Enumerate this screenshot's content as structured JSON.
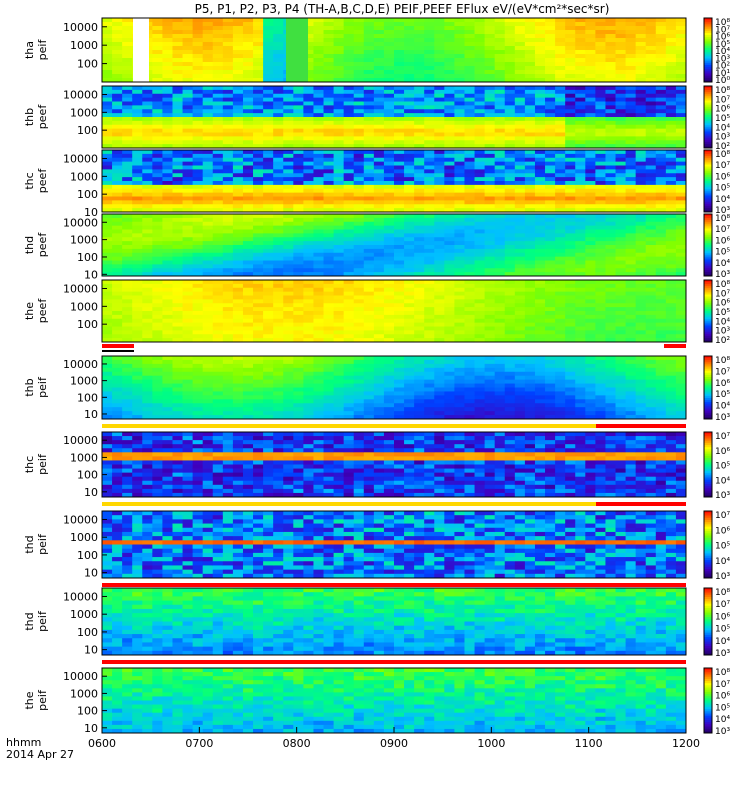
{
  "chart_data": {
    "type": "heatmap",
    "title": "P5, P1, P2, P3, P4 (TH-A,B,C,D,E) PEIF,PEEF EFlux eV/(eV*cm²*sec*sr)",
    "x_axis": {
      "label_line1": "hhmm",
      "label_line2": "2014 Apr 27",
      "ticks": [
        "0600",
        "0700",
        "0800",
        "0900",
        "1000",
        "1100",
        "1200"
      ],
      "range": [
        "0600",
        "1200"
      ]
    },
    "panels": [
      {
        "id": "tha-peif",
        "sat": "tha",
        "prod": "peif",
        "yticks": [
          "10000",
          "1000",
          "100"
        ],
        "ylim": [
          10,
          30000
        ],
        "cbticks": [
          "10⁸",
          "10⁷",
          "10⁶",
          "10⁵",
          "10⁴",
          "10³",
          "10²",
          "10¹",
          "10⁰"
        ],
        "description_hint": "ion spectrogram, mostly orange/yellow, data gap near 0620, green column near 0750"
      },
      {
        "id": "thb-peef",
        "sat": "thb",
        "prod": "peef",
        "yticks": [
          "10000",
          "1000",
          "100"
        ],
        "ylim": [
          10,
          30000
        ],
        "cbticks": [
          "10⁸",
          "10⁷",
          "10⁶",
          "10⁵",
          "10⁴",
          "10³",
          "10²"
        ]
      },
      {
        "id": "thc-peef",
        "sat": "thc",
        "prod": "peef",
        "yticks": [
          "10000",
          "1000",
          "100",
          "10"
        ],
        "ylim": [
          10,
          30000
        ],
        "cbticks": [
          "10⁸",
          "10⁷",
          "10⁶",
          "10⁵",
          "10⁴",
          "10³"
        ]
      },
      {
        "id": "thd-peef",
        "sat": "thd",
        "prod": "peef",
        "yticks": [
          "10000",
          "1000",
          "100",
          "10"
        ],
        "ylim": [
          8,
          30000
        ],
        "cbticks": [
          "10⁸",
          "10⁷",
          "10⁶",
          "10⁵",
          "10⁴",
          "10³"
        ]
      },
      {
        "id": "the-peef",
        "sat": "the",
        "prod": "peef",
        "yticks": [
          "10000",
          "1000",
          "100"
        ],
        "ylim": [
          10,
          30000
        ],
        "cbticks": [
          "10⁸",
          "10⁷",
          "10⁶",
          "10⁵",
          "10⁴",
          "10³",
          "10²"
        ]
      },
      {
        "id": "thb-peif",
        "sat": "thb",
        "prod": "peif",
        "yticks": [
          "10000",
          "1000",
          "100",
          "10"
        ],
        "ylim": [
          5,
          30000
        ],
        "cbticks": [
          "10⁸",
          "10⁷",
          "10⁶",
          "10⁵",
          "10⁴",
          "10³"
        ]
      },
      {
        "id": "thc-peif",
        "sat": "thc",
        "prod": "peif",
        "yticks": [
          "10000",
          "1000",
          "100",
          "10"
        ],
        "ylim": [
          5,
          30000
        ],
        "cbticks": [
          "10⁷",
          "10⁶",
          "10⁵",
          "10⁴",
          "10³"
        ]
      },
      {
        "id": "thd-peif",
        "sat": "thd",
        "prod": "peif",
        "yticks": [
          "10000",
          "1000",
          "100",
          "10"
        ],
        "ylim": [
          5,
          30000
        ],
        "cbticks": [
          "10⁷",
          "10⁶",
          "10⁵",
          "10⁴",
          "10³"
        ]
      },
      {
        "id": "thd-peif-2",
        "sat": "thd",
        "prod": "peif",
        "yticks": [
          "10000",
          "1000",
          "100",
          "10"
        ],
        "ylim": [
          5,
          30000
        ],
        "cbticks": [
          "10⁸",
          "10⁷",
          "10⁶",
          "10⁵",
          "10⁴",
          "10³"
        ]
      },
      {
        "id": "the-peif",
        "sat": "the",
        "prod": "peif",
        "yticks": [
          "10000",
          "1000",
          "100",
          "10"
        ],
        "ylim": [
          5,
          30000
        ],
        "cbticks": [
          "10⁸",
          "10⁷",
          "10⁶",
          "10⁵",
          "10⁴",
          "10³"
        ]
      }
    ],
    "colorbar_palette": [
      "#ff0000",
      "#ff8000",
      "#ffff00",
      "#80ff00",
      "#00ff80",
      "#00c0ff",
      "#0040ff",
      "#4000c0",
      "#200060"
    ]
  }
}
